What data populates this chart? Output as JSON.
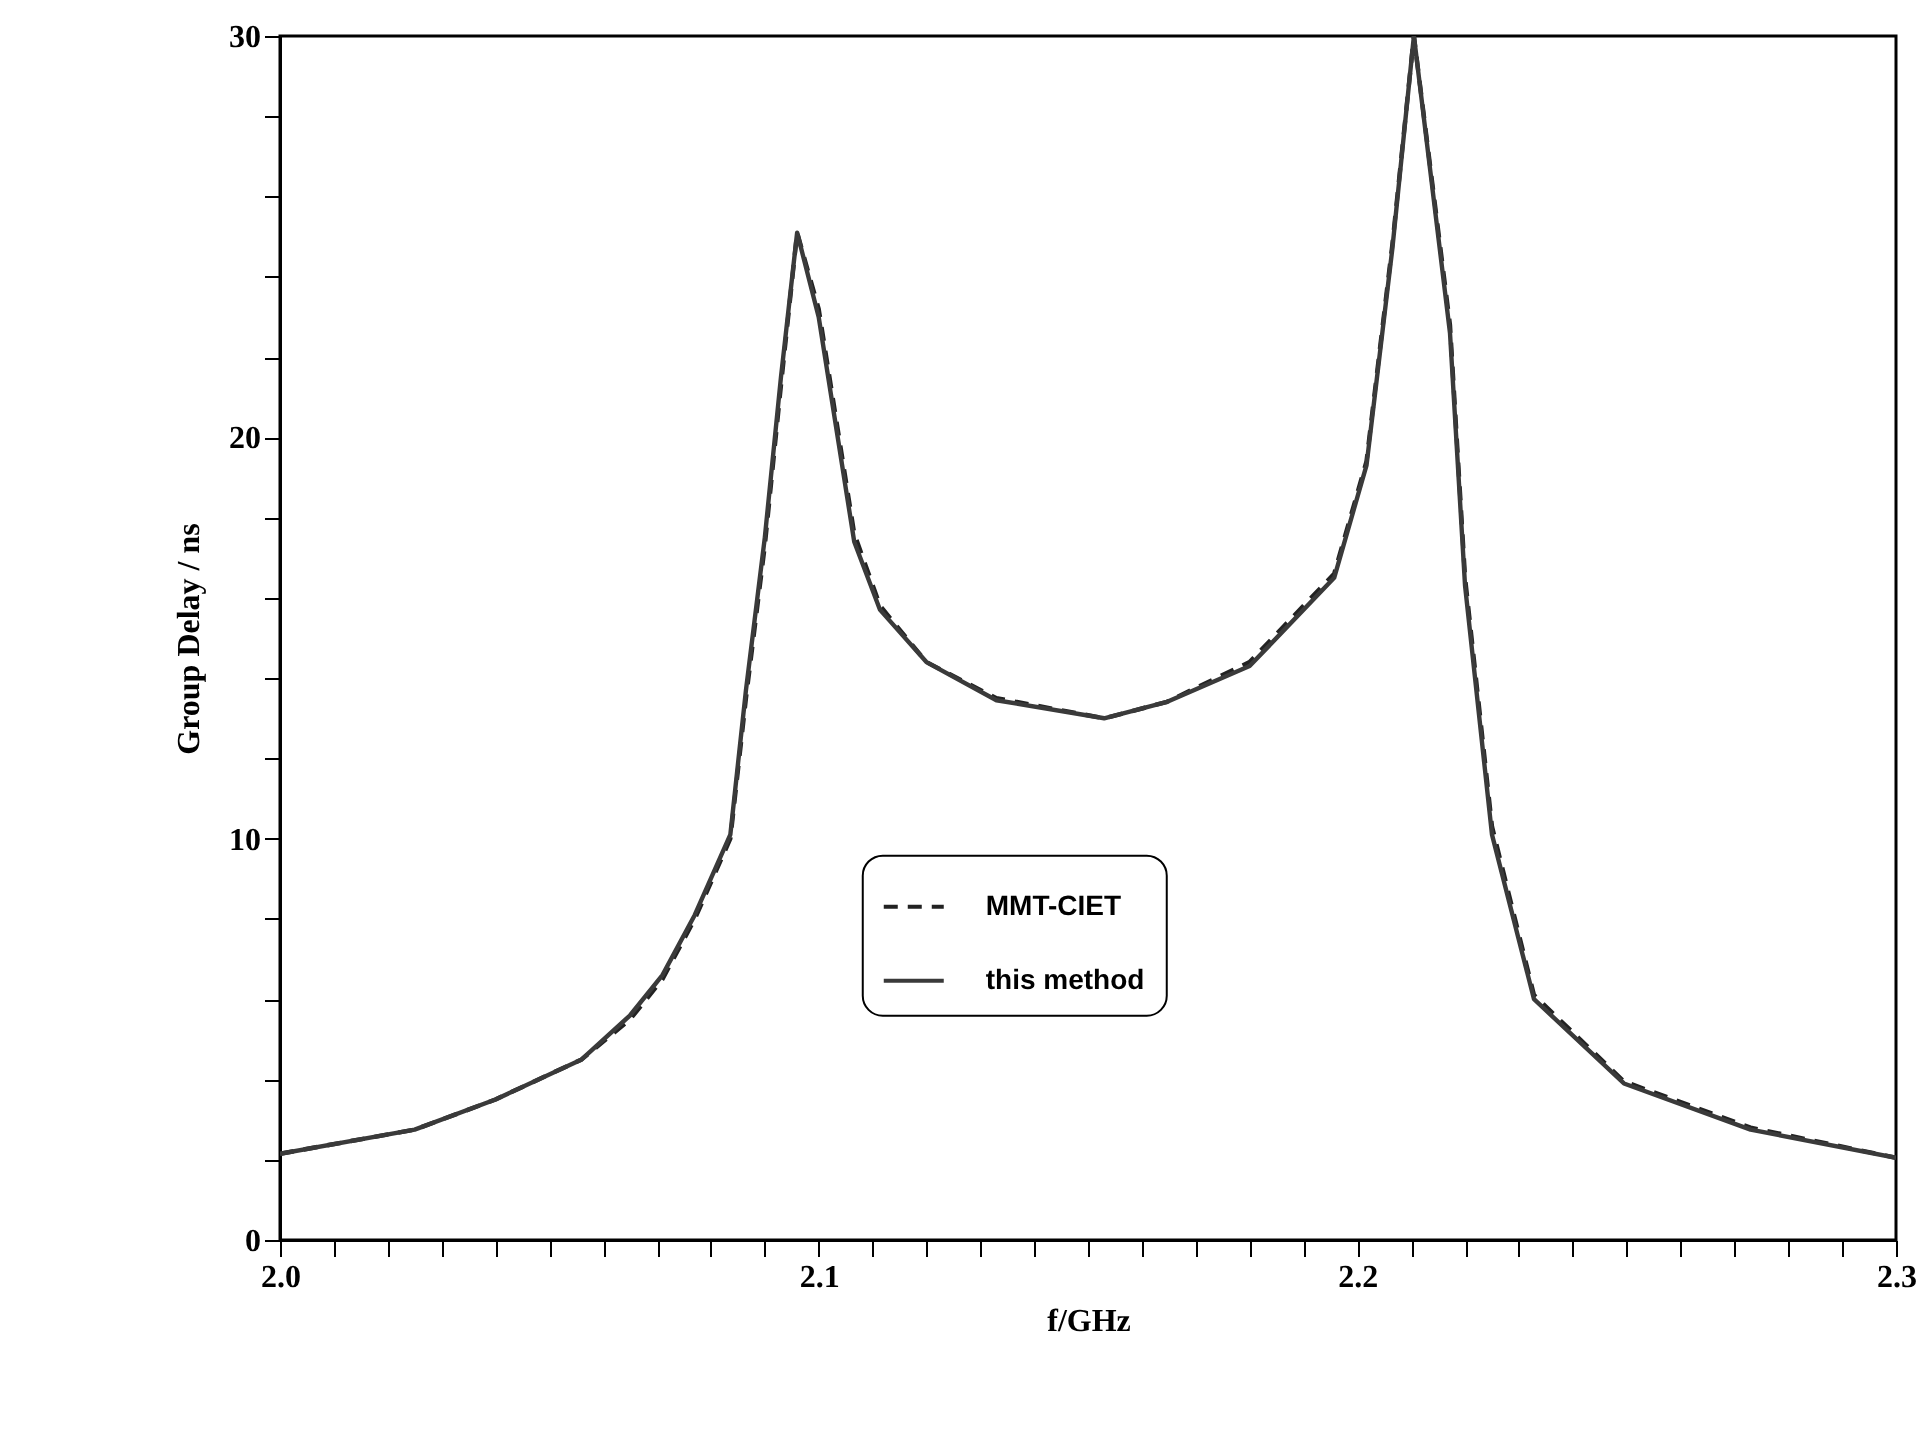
{
  "chart_data": {
    "type": "line",
    "xlabel": "f/GHz",
    "ylabel": "Group Delay / ns",
    "x": [
      2.0,
      2.025,
      2.04,
      2.056,
      2.065,
      2.071,
      2.077,
      2.0836,
      2.0865,
      2.09,
      2.093,
      2.096,
      2.1,
      2.1066,
      2.1114,
      2.12,
      2.133,
      2.153,
      2.1645,
      2.18,
      2.1957,
      2.2017,
      2.2065,
      2.2105,
      2.2172,
      2.22,
      2.225,
      2.2328,
      2.2495,
      2.273,
      2.3
    ],
    "series": [
      {
        "name": "MMT-CIET",
        "color": "#222222",
        "line_style": "dashed",
        "values": [
          2.15,
          2.75,
          3.5,
          4.5,
          5.5,
          6.5,
          8.0,
          10.0,
          13.5,
          17.3,
          21.3,
          25.1,
          23.2,
          17.6,
          15.8,
          14.4,
          13.5,
          13.0,
          13.4,
          14.4,
          16.6,
          19.4,
          24.8,
          30,
          22.8,
          16.5,
          10.3,
          6.1,
          3.95,
          2.8,
          2.05
        ]
      },
      {
        "name": "this method",
        "color": "#3a3a3a",
        "line_style": "solid",
        "values": [
          2.15,
          2.75,
          3.5,
          4.5,
          5.6,
          6.6,
          8.1,
          10.1,
          13.7,
          17.5,
          21.5,
          25.1,
          23,
          17.4,
          15.7,
          14.4,
          13.45,
          13.0,
          13.4,
          14.3,
          16.5,
          19.3,
          24.7,
          30,
          22.6,
          16.3,
          10.1,
          6.0,
          3.9,
          2.75,
          2.05
        ]
      }
    ],
    "xlim": [
      2.0,
      2.3
    ],
    "xticks": [
      {
        "value": 2.0,
        "label": "2.0"
      },
      {
        "value": 2.01,
        "label": null
      },
      {
        "value": 2.02,
        "label": null
      },
      {
        "value": 2.03,
        "label": null
      },
      {
        "value": 2.04,
        "label": null
      },
      {
        "value": 2.05,
        "label": null
      },
      {
        "value": 2.06,
        "label": null
      },
      {
        "value": 2.07,
        "label": null
      },
      {
        "value": 2.08,
        "label": null
      },
      {
        "value": 2.09,
        "label": null
      },
      2.1,
      {
        "value": 2.11,
        "label": null
      },
      {
        "value": 2.12,
        "label": null
      },
      {
        "value": 2.13,
        "label": null
      },
      {
        "value": 2.14,
        "label": null
      },
      {
        "value": 2.15,
        "label": null
      },
      {
        "value": 2.16,
        "label": null
      },
      {
        "value": 2.17,
        "label": null
      },
      {
        "value": 2.18,
        "label": null
      },
      {
        "value": 2.19,
        "label": null
      },
      2.2,
      {
        "value": 2.21,
        "label": null
      },
      {
        "value": 2.22,
        "label": null
      },
      {
        "value": 2.23,
        "label": null
      },
      {
        "value": 2.24,
        "label": null
      },
      {
        "value": 2.25,
        "label": null
      },
      {
        "value": 2.26,
        "label": null
      },
      {
        "value": 2.27,
        "label": null
      },
      {
        "value": 2.28,
        "label": null
      },
      {
        "value": 2.29,
        "label": null
      },
      2.3
    ],
    "ylim": [
      0,
      30
    ],
    "yticks": [
      0,
      {
        "value": 2,
        "label": null
      },
      {
        "value": 4,
        "label": null
      },
      {
        "value": 6,
        "label": null
      },
      {
        "value": 8,
        "label": null
      },
      10,
      {
        "value": 12,
        "label": null
      },
      {
        "value": 14,
        "label": null
      },
      {
        "value": 16,
        "label": null
      },
      {
        "value": 18,
        "label": null
      },
      20,
      {
        "value": 22,
        "label": null
      },
      {
        "value": 24,
        "label": null
      },
      {
        "value": 26,
        "label": null
      },
      {
        "value": 28,
        "label": null
      },
      30
    ],
    "grid": false,
    "legend": "bottom",
    "marker": "none"
  }
}
